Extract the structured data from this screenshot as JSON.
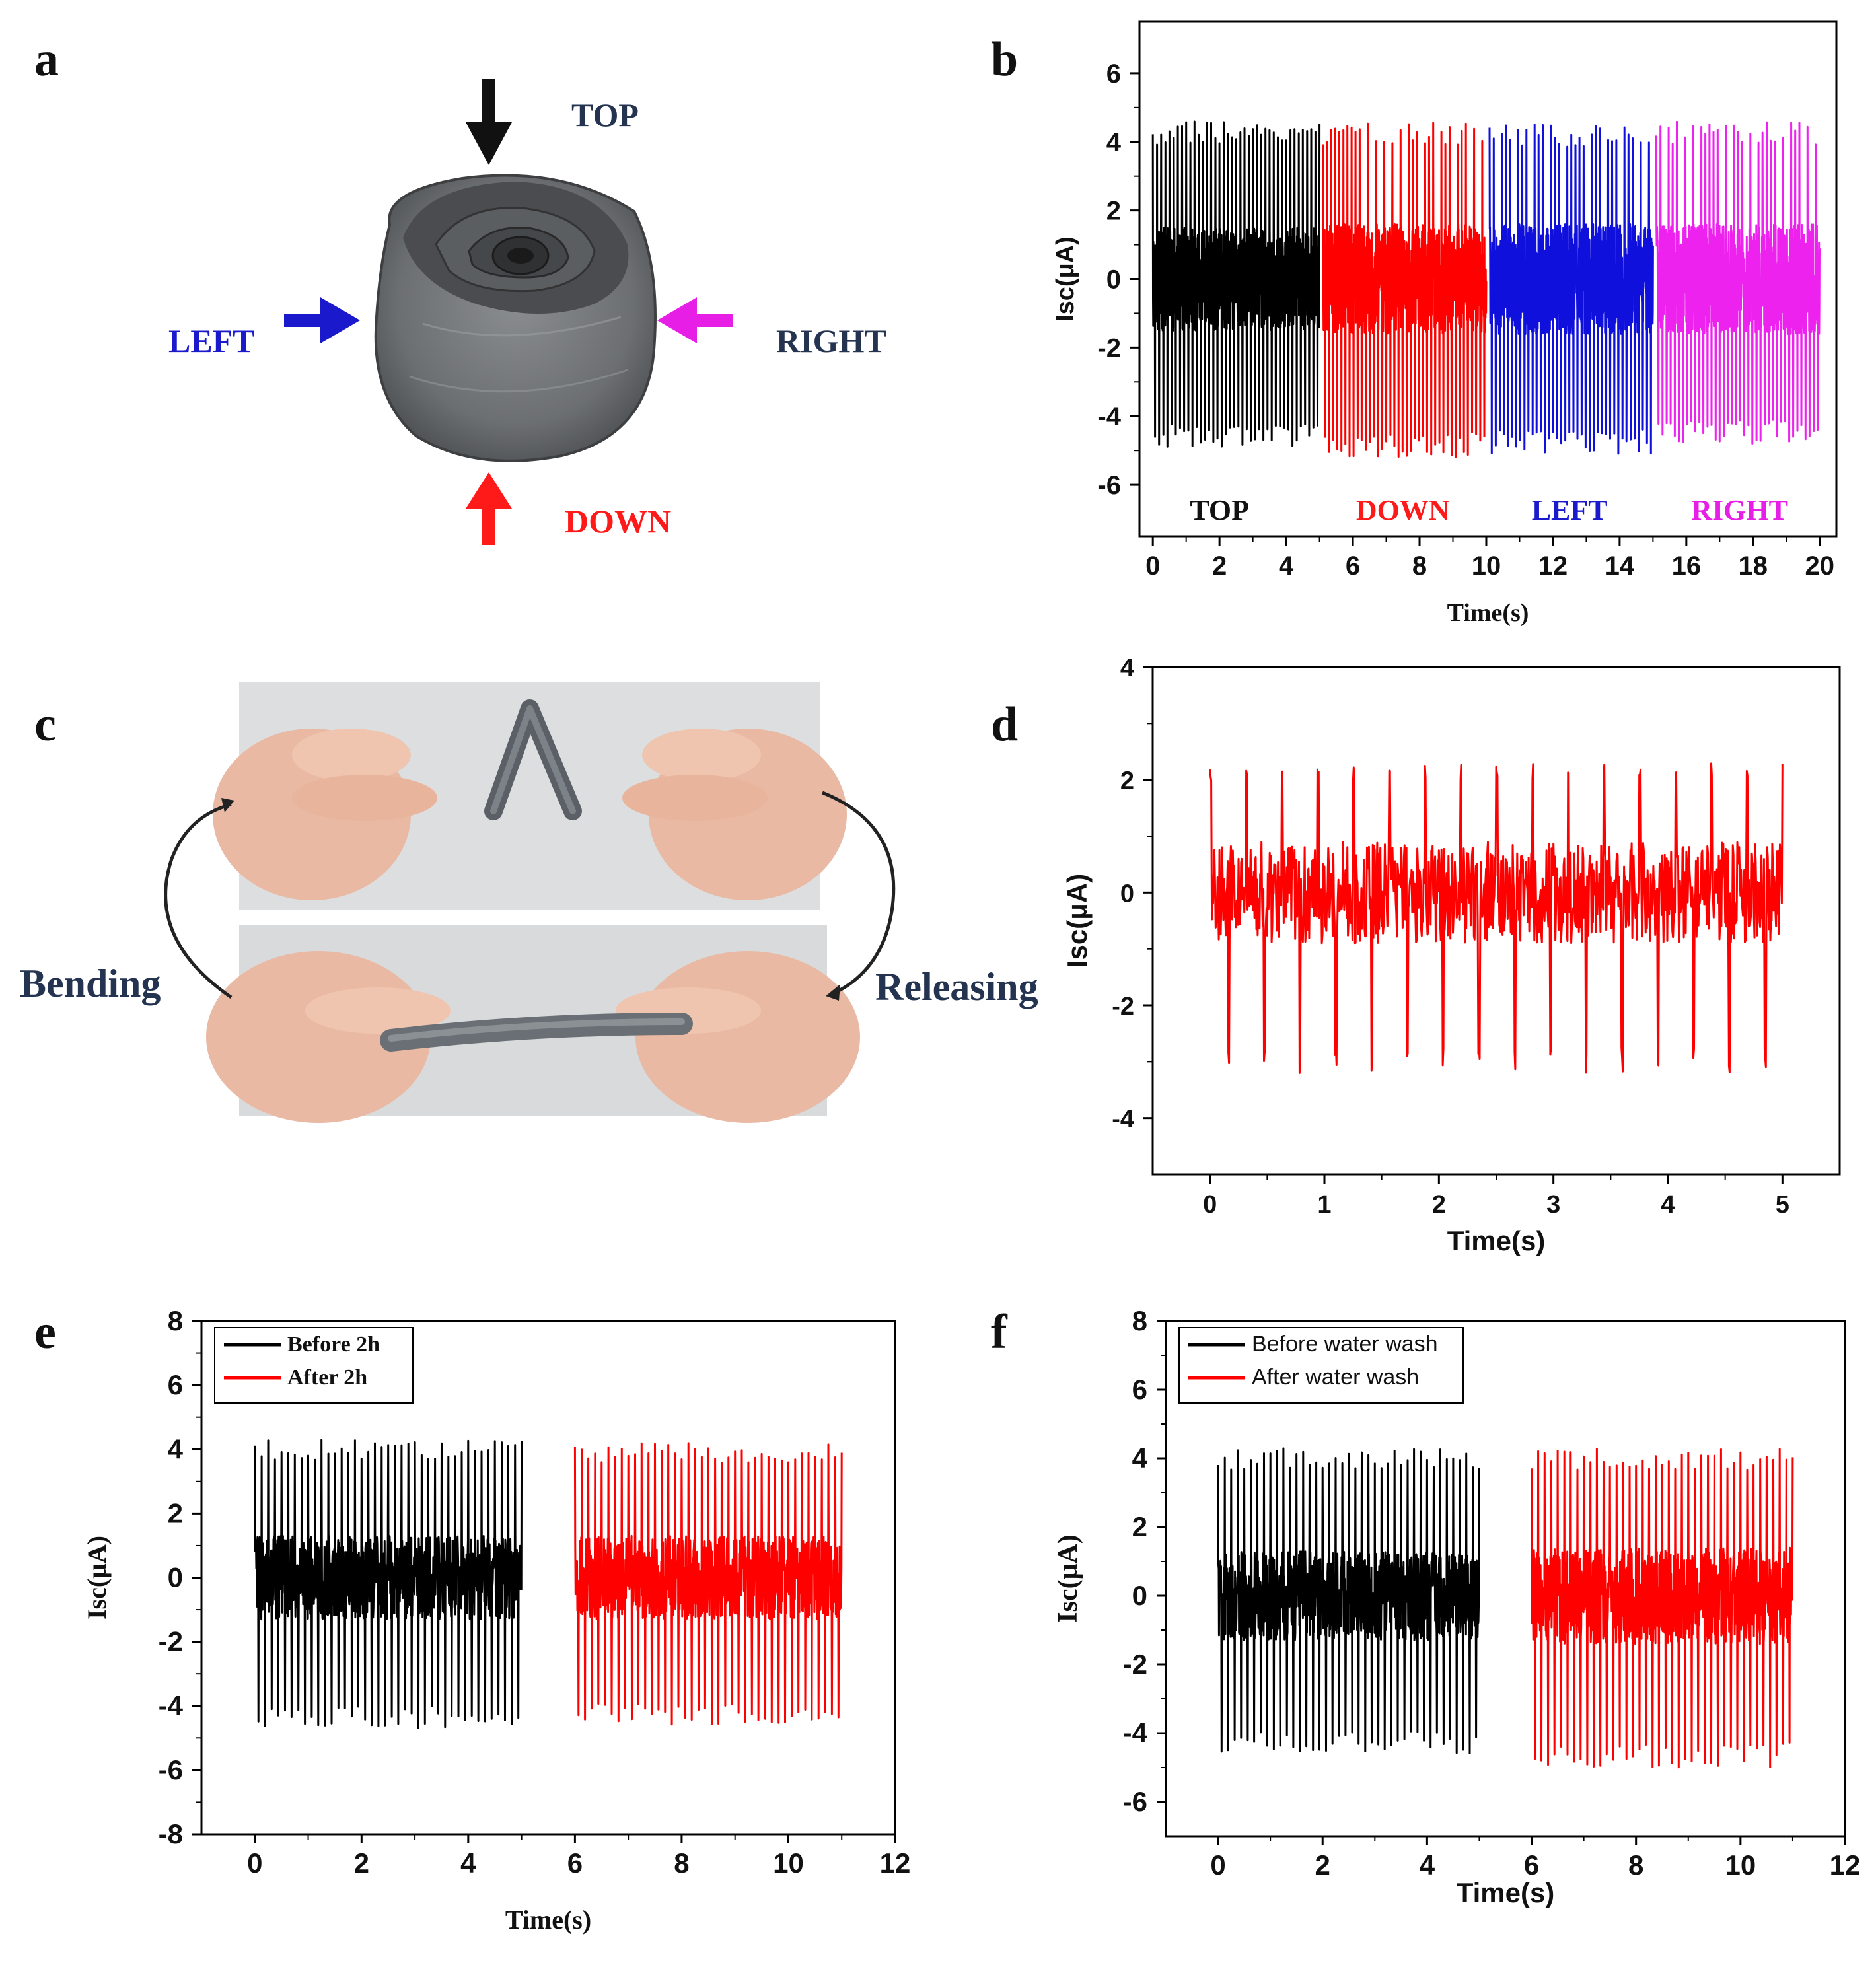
{
  "figure": {
    "panels": [
      "a",
      "b",
      "c",
      "d",
      "e",
      "f"
    ]
  },
  "panel_a": {
    "labels": {
      "top": "TOP",
      "down": "DOWN",
      "left": "LEFT",
      "right": "RIGHT"
    },
    "colors": {
      "top": "#111111",
      "down": "#ff1a1a",
      "left": "#1a1acc",
      "right": "#e61ee6",
      "top_text": "#243350",
      "right_text": "#243350"
    },
    "photo_icon": "rolled-fabric-device-photo"
  },
  "panel_c": {
    "bending_label": "Bending",
    "releasing_label": "Releasing",
    "photo_icon": "hands-bending-fiber-photo"
  },
  "chart_data": [
    {
      "id": "b",
      "type": "line",
      "title": "",
      "xlabel": "Time(s)",
      "ylabel": "Isc(μA)",
      "xlim": [
        -0.4,
        20.5
      ],
      "ylim": [
        -7.5,
        7.5
      ],
      "xticks": [
        0,
        2,
        4,
        6,
        8,
        10,
        12,
        14,
        16,
        18,
        20
      ],
      "yticks": [
        -6,
        -4,
        -2,
        0,
        2,
        4,
        6
      ],
      "segment_labels": [
        {
          "text": "TOP",
          "x": 2,
          "color": "#111111"
        },
        {
          "text": "DOWN",
          "x": 7.5,
          "color": "#ff1a1a"
        },
        {
          "text": "LEFT",
          "x": 12.5,
          "color": "#1a1acc"
        },
        {
          "text": "RIGHT",
          "x": 17.6,
          "color": "#e61ee6"
        }
      ],
      "series": [
        {
          "name": "TOP",
          "color": "#000000",
          "t_start": 0.0,
          "t_end": 5.0,
          "peaks": 40,
          "pos_amp": 4.6,
          "neg_amp": -4.9,
          "noise": 1.5,
          "seed": 11
        },
        {
          "name": "DOWN",
          "color": "#ff0000",
          "t_start": 5.1,
          "t_end": 10.0,
          "peaks": 40,
          "pos_amp": 4.6,
          "neg_amp": -5.2,
          "noise": 1.6,
          "seed": 23
        },
        {
          "name": "LEFT",
          "color": "#1010dd",
          "t_start": 10.1,
          "t_end": 15.0,
          "peaks": 40,
          "pos_amp": 4.5,
          "neg_amp": -5.1,
          "noise": 1.6,
          "seed": 37
        },
        {
          "name": "RIGHT",
          "color": "#ee22ee",
          "t_start": 15.1,
          "t_end": 20.0,
          "peaks": 40,
          "pos_amp": 4.6,
          "neg_amp": -4.8,
          "noise": 1.6,
          "seed": 41
        }
      ]
    },
    {
      "id": "d",
      "type": "line",
      "title": "",
      "xlabel": "Time(s)",
      "ylabel": "Isc(μA)",
      "xlim": [
        -0.5,
        5.5
      ],
      "ylim": [
        -5,
        4
      ],
      "xticks": [
        0,
        1,
        2,
        3,
        4,
        5
      ],
      "yticks": [
        -4,
        -2,
        0,
        2,
        4
      ],
      "series": [
        {
          "name": "Bending/Releasing",
          "color": "#ff0000",
          "t_start": 0.0,
          "t_end": 5.0,
          "peaks": 16,
          "pos_amp": 2.3,
          "neg_amp": -3.2,
          "noise": 0.9,
          "seed": 5
        }
      ]
    },
    {
      "id": "e",
      "type": "line",
      "title": "",
      "xlabel": "Time(s)",
      "ylabel": "Isc(μA)",
      "xlim": [
        -1,
        12
      ],
      "ylim": [
        -8,
        8
      ],
      "xticks": [
        0,
        2,
        4,
        6,
        8,
        10,
        12
      ],
      "yticks": [
        -8,
        -6,
        -4,
        -2,
        0,
        2,
        4,
        6,
        8
      ],
      "legend": [
        {
          "label": "Before 2h",
          "color": "#000000"
        },
        {
          "label": "After 2h",
          "color": "#ff0000"
        }
      ],
      "series": [
        {
          "name": "Before 2h",
          "color": "#000000",
          "t_start": 0.0,
          "t_end": 5.0,
          "peaks": 40,
          "pos_amp": 4.3,
          "neg_amp": -4.7,
          "noise": 1.3,
          "seed": 13
        },
        {
          "name": "After 2h",
          "color": "#ff0000",
          "t_start": 6.0,
          "t_end": 11.0,
          "peaks": 40,
          "pos_amp": 4.2,
          "neg_amp": -4.6,
          "noise": 1.3,
          "seed": 29
        }
      ]
    },
    {
      "id": "f",
      "type": "line",
      "title": "",
      "xlabel": "Time(s)",
      "ylabel": "Isc(μA)",
      "xlim": [
        -1,
        12
      ],
      "ylim": [
        -7,
        8
      ],
      "xticks": [
        0,
        2,
        4,
        6,
        8,
        10,
        12
      ],
      "yticks": [
        -6,
        -4,
        -2,
        0,
        2,
        4,
        6,
        8
      ],
      "legend": [
        {
          "label": "Before water wash",
          "color": "#000000"
        },
        {
          "label": "After water wash",
          "color": "#ff0000"
        }
      ],
      "series": [
        {
          "name": "Before water wash",
          "color": "#000000",
          "t_start": 0.0,
          "t_end": 5.0,
          "peaks": 40,
          "pos_amp": 4.3,
          "neg_amp": -4.6,
          "noise": 1.3,
          "seed": 17
        },
        {
          "name": "After water wash",
          "color": "#ff0000",
          "t_start": 6.0,
          "t_end": 11.0,
          "peaks": 40,
          "pos_amp": 4.3,
          "neg_amp": -5.0,
          "noise": 1.4,
          "seed": 31
        }
      ]
    }
  ]
}
